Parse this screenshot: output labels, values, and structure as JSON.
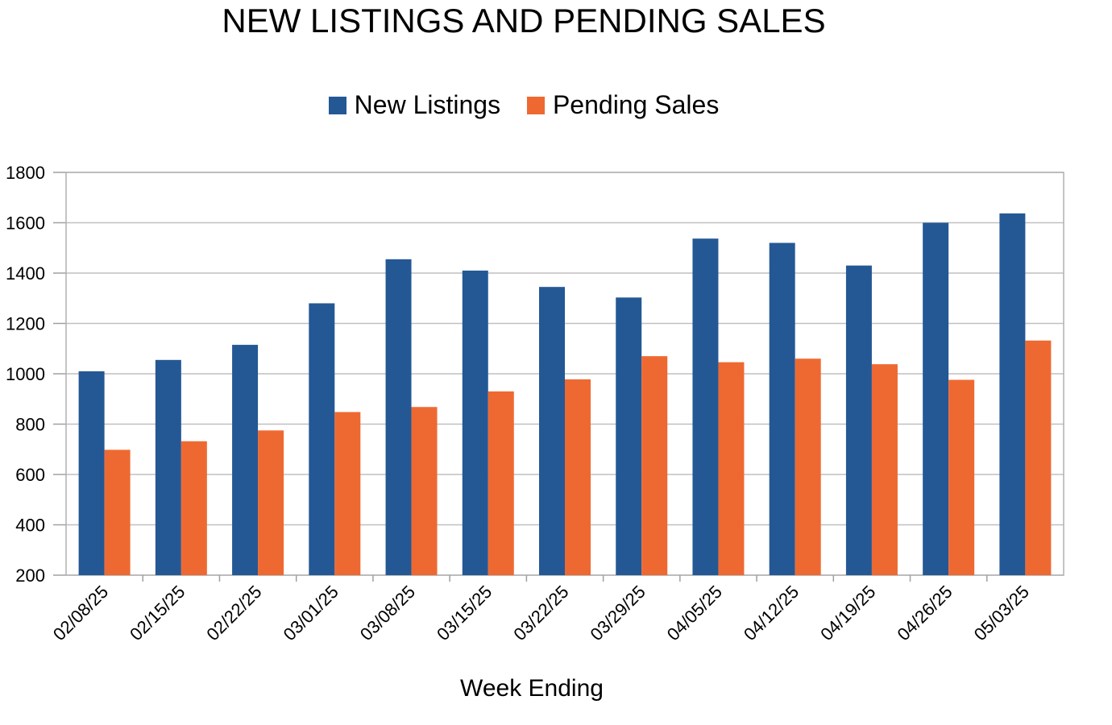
{
  "chart_data": {
    "type": "bar",
    "title": "NEW LISTINGS AND PENDING SALES",
    "xlabel": "Week Ending",
    "ylabel": "",
    "ylim": [
      200,
      1800
    ],
    "yticks": [
      200,
      400,
      600,
      800,
      1000,
      1200,
      1400,
      1600,
      1800
    ],
    "grid": true,
    "legend_position": "top-center",
    "categories": [
      "02/08/25",
      "02/15/25",
      "02/22/25",
      "03/01/25",
      "03/08/25",
      "03/15/25",
      "03/22/25",
      "03/29/25",
      "04/05/25",
      "04/12/25",
      "04/19/25",
      "04/26/25",
      "05/03/25"
    ],
    "series": [
      {
        "name": "New Listings",
        "color": "#245895",
        "values": [
          1010,
          1055,
          1115,
          1280,
          1455,
          1410,
          1345,
          1303,
          1537,
          1520,
          1430,
          1600,
          1637
        ]
      },
      {
        "name": "Pending Sales",
        "color": "#EE6931",
        "values": [
          698,
          732,
          775,
          848,
          868,
          930,
          978,
          1070,
          1046,
          1060,
          1038,
          976,
          1132
        ]
      }
    ]
  }
}
